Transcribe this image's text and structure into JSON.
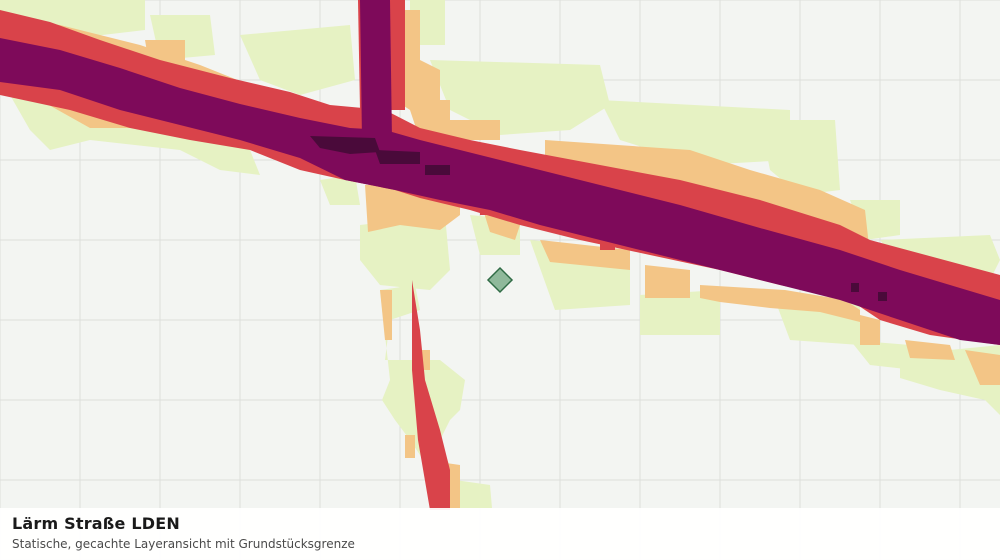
{
  "map": {
    "layer": "Lärm Straße LDEN",
    "noise_class_colors": {
      "class_1": "#e6f2c3",
      "class_2": "#f3c586",
      "class_3": "#d9434a",
      "class_4": "#7e0a5a",
      "class_5": "#4a0a3a"
    },
    "grid_color": "#dcdfdb",
    "background_color": "#f3f5f2",
    "parcel_boundary": {
      "shape": "diamond",
      "fill": "#8fb99b",
      "stroke": "#2f6b45"
    }
  },
  "caption": {
    "title": "Lärm Straße LDEN",
    "subtitle": "Statische, gecachte Layeransicht mit Grundstücksgrenze"
  }
}
